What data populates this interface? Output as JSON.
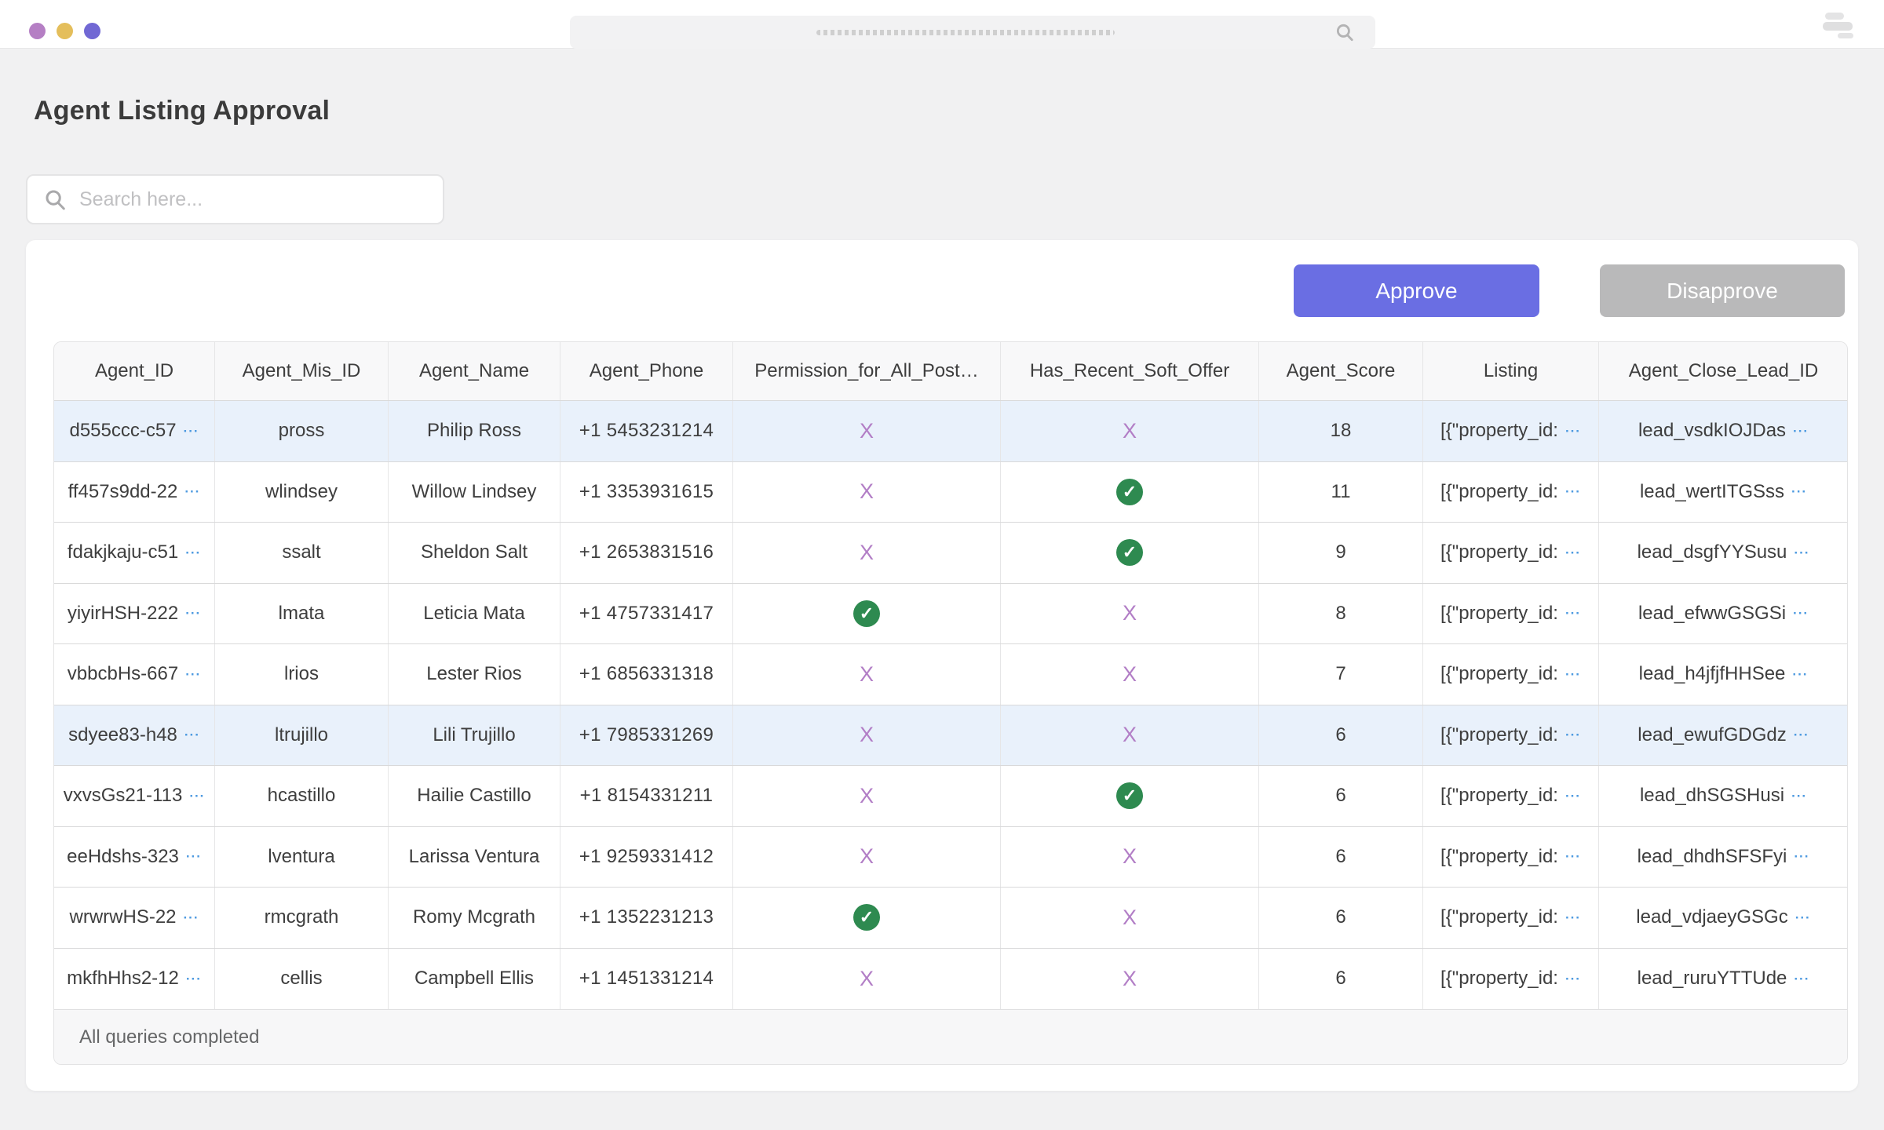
{
  "topbar": {
    "traffic_lights": [
      {
        "name": "purple-dot",
        "color": "#b57fc4"
      },
      {
        "name": "yellow-dot",
        "color": "#e4be5b"
      },
      {
        "name": "indigo-dot",
        "color": "#7168d4"
      }
    ]
  },
  "page": {
    "title": "Agent Listing Approval",
    "search_placeholder": "Search here...",
    "approve_label": "Approve",
    "disapprove_label": "Disapprove",
    "footer_status": "All queries completed"
  },
  "colors": {
    "approve_bg": "#6a6ee3",
    "disapprove_bg": "#b9b9ba",
    "check_green": "#2e8a50",
    "x_purple": "#b27ec6",
    "ellipsis_blue": "#4d9ae0",
    "row_highlight": "#e9f1fb"
  },
  "table": {
    "columns": [
      "Agent_ID",
      "Agent_Mis_ID",
      "Agent_Name",
      "Agent_Phone",
      "Permission_for_All_Post…",
      "Has_Recent_Soft_Offer",
      "Agent_Score",
      "Listing",
      "Agent_Close_Lead_ID"
    ],
    "listing_preview": "[{\"property_id:",
    "rows": [
      {
        "agent_id": "d555ccc-c57",
        "mis_id": "pross",
        "name": "Philip Ross",
        "phone": "+1 5453231214",
        "permission": "x",
        "soft_offer": "x",
        "score": "18",
        "lead_id": "lead_vsdkIOJDas",
        "highlighted": true
      },
      {
        "agent_id": "ff457s9dd-22",
        "mis_id": "wlindsey",
        "name": "Willow Lindsey",
        "phone": "+1 3353931615",
        "permission": "x",
        "soft_offer": "check",
        "score": "11",
        "lead_id": "lead_wertITGSss",
        "highlighted": false
      },
      {
        "agent_id": "fdakjkaju-c51",
        "mis_id": "ssalt",
        "name": "Sheldon Salt",
        "phone": "+1 2653831516",
        "permission": "x",
        "soft_offer": "check",
        "score": "9",
        "lead_id": "lead_dsgfYYSusu",
        "highlighted": false
      },
      {
        "agent_id": "yiyirHSH-222",
        "mis_id": "lmata",
        "name": "Leticia Mata",
        "phone": "+1 4757331417",
        "permission": "check",
        "soft_offer": "x",
        "score": "8",
        "lead_id": "lead_efwwGSGSi",
        "highlighted": false
      },
      {
        "agent_id": "vbbcbHs-667",
        "mis_id": "lrios",
        "name": "Lester Rios",
        "phone": "+1 6856331318",
        "permission": "x",
        "soft_offer": "x",
        "score": "7",
        "lead_id": "lead_h4jfjfHHSee",
        "highlighted": false
      },
      {
        "agent_id": "sdyee83-h48",
        "mis_id": "ltrujillo",
        "name": "Lili Trujillo",
        "phone": "+1 7985331269",
        "permission": "x",
        "soft_offer": "x",
        "score": "6",
        "lead_id": "lead_ewufGDGdz",
        "highlighted": true
      },
      {
        "agent_id": "vxvsGs21-113",
        "mis_id": "hcastillo",
        "name": "Hailie Castillo",
        "phone": "+1 8154331211",
        "permission": "x",
        "soft_offer": "check",
        "score": "6",
        "lead_id": "lead_dhSGSHusi",
        "highlighted": false
      },
      {
        "agent_id": "eeHdshs-323",
        "mis_id": "lventura",
        "name": "Larissa Ventura",
        "phone": "+1 9259331412",
        "permission": "x",
        "soft_offer": "x",
        "score": "6",
        "lead_id": "lead_dhdhSFSFyi",
        "highlighted": false
      },
      {
        "agent_id": "wrwrwHS-22",
        "mis_id": "rmcgrath",
        "name": "Romy Mcgrath",
        "phone": "+1 1352231213",
        "permission": "check",
        "soft_offer": "x",
        "score": "6",
        "lead_id": "lead_vdjaeyGSGc",
        "highlighted": false
      },
      {
        "agent_id": "mkfhHhs2-12",
        "mis_id": "cellis",
        "name": "Campbell Ellis",
        "phone": "+1 1451331214",
        "permission": "x",
        "soft_offer": "x",
        "score": "6",
        "lead_id": "lead_ruruYTTUde",
        "highlighted": false
      }
    ]
  }
}
